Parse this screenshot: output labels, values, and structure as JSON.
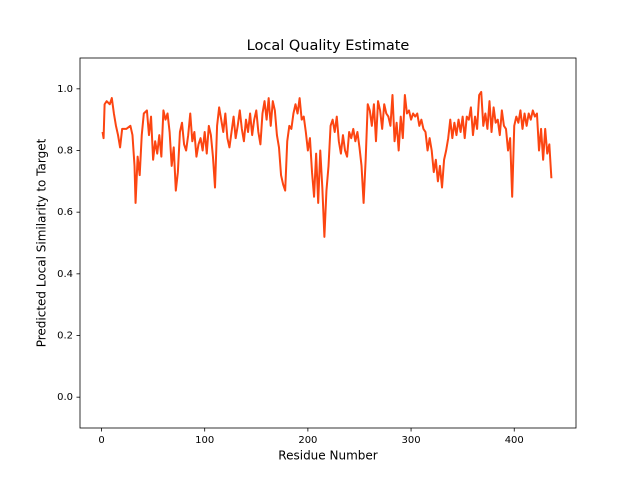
{
  "chart_data": {
    "type": "line",
    "title": "Local Quality Estimate",
    "xlabel": "Residue Number",
    "ylabel": "Predicted Local Similarity to Target",
    "x": [
      1,
      2,
      3,
      5,
      8,
      10,
      12,
      14,
      16,
      18,
      20,
      24,
      28,
      30,
      32,
      33,
      35,
      37,
      39,
      41,
      44,
      46,
      48,
      50,
      52,
      54,
      56,
      58,
      60,
      62,
      64,
      66,
      68,
      70,
      72,
      74,
      76,
      78,
      80,
      82,
      84,
      86,
      88,
      90,
      92,
      94,
      96,
      98,
      100,
      102,
      104,
      106,
      108,
      110,
      112,
      114,
      116,
      118,
      120,
      122,
      124,
      126,
      128,
      130,
      132,
      134,
      136,
      138,
      140,
      142,
      144,
      146,
      148,
      150,
      152,
      154,
      156,
      158,
      160,
      162,
      164,
      166,
      168,
      170,
      172,
      174,
      176,
      178,
      180,
      182,
      184,
      186,
      188,
      190,
      192,
      194,
      196,
      198,
      200,
      202,
      204,
      206,
      208,
      210,
      212,
      214,
      216,
      218,
      220,
      222,
      224,
      226,
      228,
      230,
      232,
      234,
      236,
      238,
      240,
      242,
      244,
      246,
      248,
      250,
      252,
      254,
      256,
      258,
      260,
      262,
      264,
      266,
      268,
      270,
      272,
      274,
      276,
      278,
      280,
      282,
      284,
      286,
      288,
      290,
      292,
      294,
      296,
      298,
      300,
      302,
      304,
      306,
      308,
      310,
      312,
      314,
      316,
      318,
      320,
      322,
      324,
      326,
      328,
      330,
      332,
      334,
      336,
      338,
      340,
      342,
      344,
      346,
      348,
      350,
      352,
      354,
      356,
      358,
      360,
      362,
      364,
      366,
      368,
      370,
      372,
      374,
      376,
      378,
      380,
      382,
      384,
      386,
      388,
      390,
      392,
      394,
      396,
      398,
      400,
      402,
      404,
      406,
      408,
      410,
      412,
      414,
      416,
      418,
      420,
      422,
      424,
      426,
      428,
      430,
      432,
      434,
      436
    ],
    "series": [
      {
        "color": "#fc4511",
        "values": [
          0.86,
          0.84,
          0.95,
          0.96,
          0.95,
          0.97,
          0.92,
          0.88,
          0.85,
          0.81,
          0.87,
          0.87,
          0.88,
          0.85,
          0.75,
          0.63,
          0.78,
          0.72,
          0.85,
          0.92,
          0.93,
          0.85,
          0.91,
          0.77,
          0.83,
          0.79,
          0.85,
          0.78,
          0.93,
          0.9,
          0.92,
          0.86,
          0.75,
          0.81,
          0.67,
          0.73,
          0.86,
          0.89,
          0.82,
          0.8,
          0.85,
          0.92,
          0.83,
          0.86,
          0.78,
          0.82,
          0.84,
          0.8,
          0.86,
          0.79,
          0.88,
          0.85,
          0.78,
          0.68,
          0.88,
          0.94,
          0.9,
          0.86,
          0.92,
          0.84,
          0.81,
          0.86,
          0.91,
          0.84,
          0.88,
          0.93,
          0.87,
          0.83,
          0.9,
          0.86,
          0.92,
          0.85,
          0.9,
          0.93,
          0.86,
          0.82,
          0.92,
          0.96,
          0.9,
          0.97,
          0.88,
          0.96,
          0.93,
          0.85,
          0.81,
          0.72,
          0.69,
          0.67,
          0.83,
          0.88,
          0.87,
          0.92,
          0.95,
          0.92,
          0.97,
          0.9,
          0.91,
          0.86,
          0.8,
          0.84,
          0.73,
          0.65,
          0.79,
          0.63,
          0.8,
          0.68,
          0.52,
          0.67,
          0.75,
          0.88,
          0.9,
          0.86,
          0.91,
          0.83,
          0.79,
          0.85,
          0.8,
          0.78,
          0.86,
          0.84,
          0.87,
          0.83,
          0.86,
          0.81,
          0.75,
          0.63,
          0.77,
          0.95,
          0.93,
          0.88,
          0.95,
          0.83,
          0.96,
          0.93,
          0.87,
          0.95,
          0.92,
          0.91,
          0.88,
          0.98,
          0.83,
          0.89,
          0.8,
          0.91,
          0.84,
          0.98,
          0.92,
          0.93,
          0.9,
          0.92,
          0.91,
          0.92,
          0.88,
          0.9,
          0.87,
          0.86,
          0.8,
          0.84,
          0.8,
          0.73,
          0.77,
          0.7,
          0.75,
          0.68,
          0.77,
          0.8,
          0.84,
          0.9,
          0.84,
          0.89,
          0.85,
          0.9,
          0.86,
          0.91,
          0.84,
          0.91,
          0.9,
          0.94,
          0.85,
          0.91,
          0.87,
          0.98,
          0.99,
          0.88,
          0.92,
          0.87,
          0.96,
          0.86,
          0.94,
          0.89,
          0.9,
          0.85,
          0.93,
          0.88,
          0.87,
          0.8,
          0.84,
          0.65,
          0.88,
          0.91,
          0.89,
          0.93,
          0.87,
          0.92,
          0.88,
          0.92,
          0.9,
          0.93,
          0.91,
          0.92,
          0.8,
          0.87,
          0.77,
          0.87,
          0.79,
          0.82,
          0.71
        ]
      }
    ],
    "xlim": [
      -20.85,
      459.85
    ],
    "ylim": [
      -0.1,
      1.1
    ],
    "xticks": [
      0,
      100,
      200,
      300,
      400
    ],
    "yticks": [
      {
        "value": 0,
        "label": "0.0"
      },
      0.2,
      0.4,
      0.6,
      0.8,
      {
        "value": 1,
        "label": "1.0"
      }
    ]
  }
}
